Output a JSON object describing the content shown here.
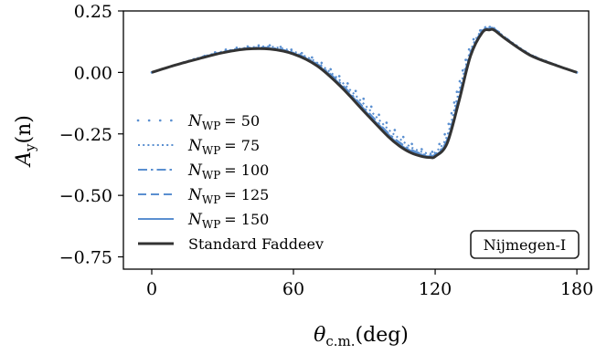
{
  "chart_data": {
    "type": "line",
    "xlabel_symbol": "θ",
    "xlabel_sub": "c.m.",
    "xlabel_unit": "(deg)",
    "ylabel_symbol": "A",
    "ylabel_sub": "y",
    "ylabel_arg": "(n)",
    "xlim": [
      -12,
      185
    ],
    "ylim": [
      -0.8,
      0.25
    ],
    "xticks": [
      0,
      60,
      120,
      180
    ],
    "yticks": [
      0.25,
      0.0,
      -0.25,
      -0.5,
      -0.75
    ],
    "ytick_labels": [
      "0.25",
      "0.00",
      "−0.25",
      "−0.50",
      "−0.75"
    ],
    "annotation": "Nijmegen-I",
    "legend_position": "lower-left",
    "colors": {
      "wp": "#5a8fd0",
      "faddeev": "#333333"
    },
    "x": [
      0,
      10,
      20,
      30,
      40,
      50,
      60,
      70,
      80,
      90,
      100,
      105,
      110,
      115,
      118,
      120,
      125,
      130,
      135,
      140,
      143,
      145,
      150,
      160,
      170,
      180
    ],
    "series": [
      {
        "legend_sym": "N",
        "legend_sub": "WP",
        "legend_val": "= 50",
        "style": "sparse-dotted",
        "values": [
          0.0,
          0.03,
          0.06,
          0.09,
          0.105,
          0.11,
          0.09,
          0.05,
          -0.02,
          -0.11,
          -0.21,
          -0.25,
          -0.29,
          -0.315,
          -0.32,
          -0.315,
          -0.23,
          -0.05,
          0.11,
          0.18,
          0.185,
          0.18,
          0.14,
          0.075,
          0.035,
          0.0
        ]
      },
      {
        "legend_sym": "N",
        "legend_sub": "WP",
        "legend_val": "= 75",
        "style": "dotted",
        "values": [
          0.0,
          0.03,
          0.06,
          0.085,
          0.1,
          0.105,
          0.085,
          0.04,
          -0.035,
          -0.13,
          -0.23,
          -0.27,
          -0.305,
          -0.325,
          -0.33,
          -0.325,
          -0.26,
          -0.08,
          0.09,
          0.175,
          0.185,
          0.18,
          0.14,
          0.075,
          0.035,
          0.0
        ]
      },
      {
        "legend_sym": "N",
        "legend_sub": "WP",
        "legend_val": "= 100",
        "style": "dashdot",
        "values": [
          0.0,
          0.03,
          0.058,
          0.083,
          0.098,
          0.1,
          0.08,
          0.035,
          -0.045,
          -0.145,
          -0.245,
          -0.285,
          -0.315,
          -0.333,
          -0.337,
          -0.333,
          -0.275,
          -0.1,
          0.08,
          0.17,
          0.18,
          0.178,
          0.138,
          0.073,
          0.034,
          0.0
        ]
      },
      {
        "legend_sym": "N",
        "legend_sub": "WP",
        "legend_val": "= 125",
        "style": "dashed",
        "values": [
          0.0,
          0.03,
          0.057,
          0.082,
          0.097,
          0.098,
          0.078,
          0.032,
          -0.05,
          -0.15,
          -0.25,
          -0.29,
          -0.32,
          -0.336,
          -0.34,
          -0.336,
          -0.28,
          -0.11,
          0.075,
          0.168,
          0.178,
          0.176,
          0.137,
          0.072,
          0.034,
          0.0
        ]
      },
      {
        "legend_sym": "N",
        "legend_sub": "WP",
        "legend_val": "= 150",
        "style": "solid",
        "values": [
          0.0,
          0.03,
          0.057,
          0.081,
          0.096,
          0.097,
          0.077,
          0.03,
          -0.052,
          -0.153,
          -0.253,
          -0.293,
          -0.322,
          -0.338,
          -0.342,
          -0.338,
          -0.283,
          -0.115,
          0.072,
          0.166,
          0.176,
          0.175,
          0.136,
          0.072,
          0.033,
          0.0
        ]
      },
      {
        "legend_label": "Standard Faddeev",
        "style": "solid-thick",
        "values": [
          0.0,
          0.03,
          0.056,
          0.08,
          0.095,
          0.095,
          0.075,
          0.027,
          -0.057,
          -0.16,
          -0.26,
          -0.3,
          -0.328,
          -0.343,
          -0.346,
          -0.342,
          -0.29,
          -0.12,
          0.068,
          0.163,
          0.173,
          0.172,
          0.135,
          0.071,
          0.033,
          0.0
        ]
      }
    ]
  }
}
